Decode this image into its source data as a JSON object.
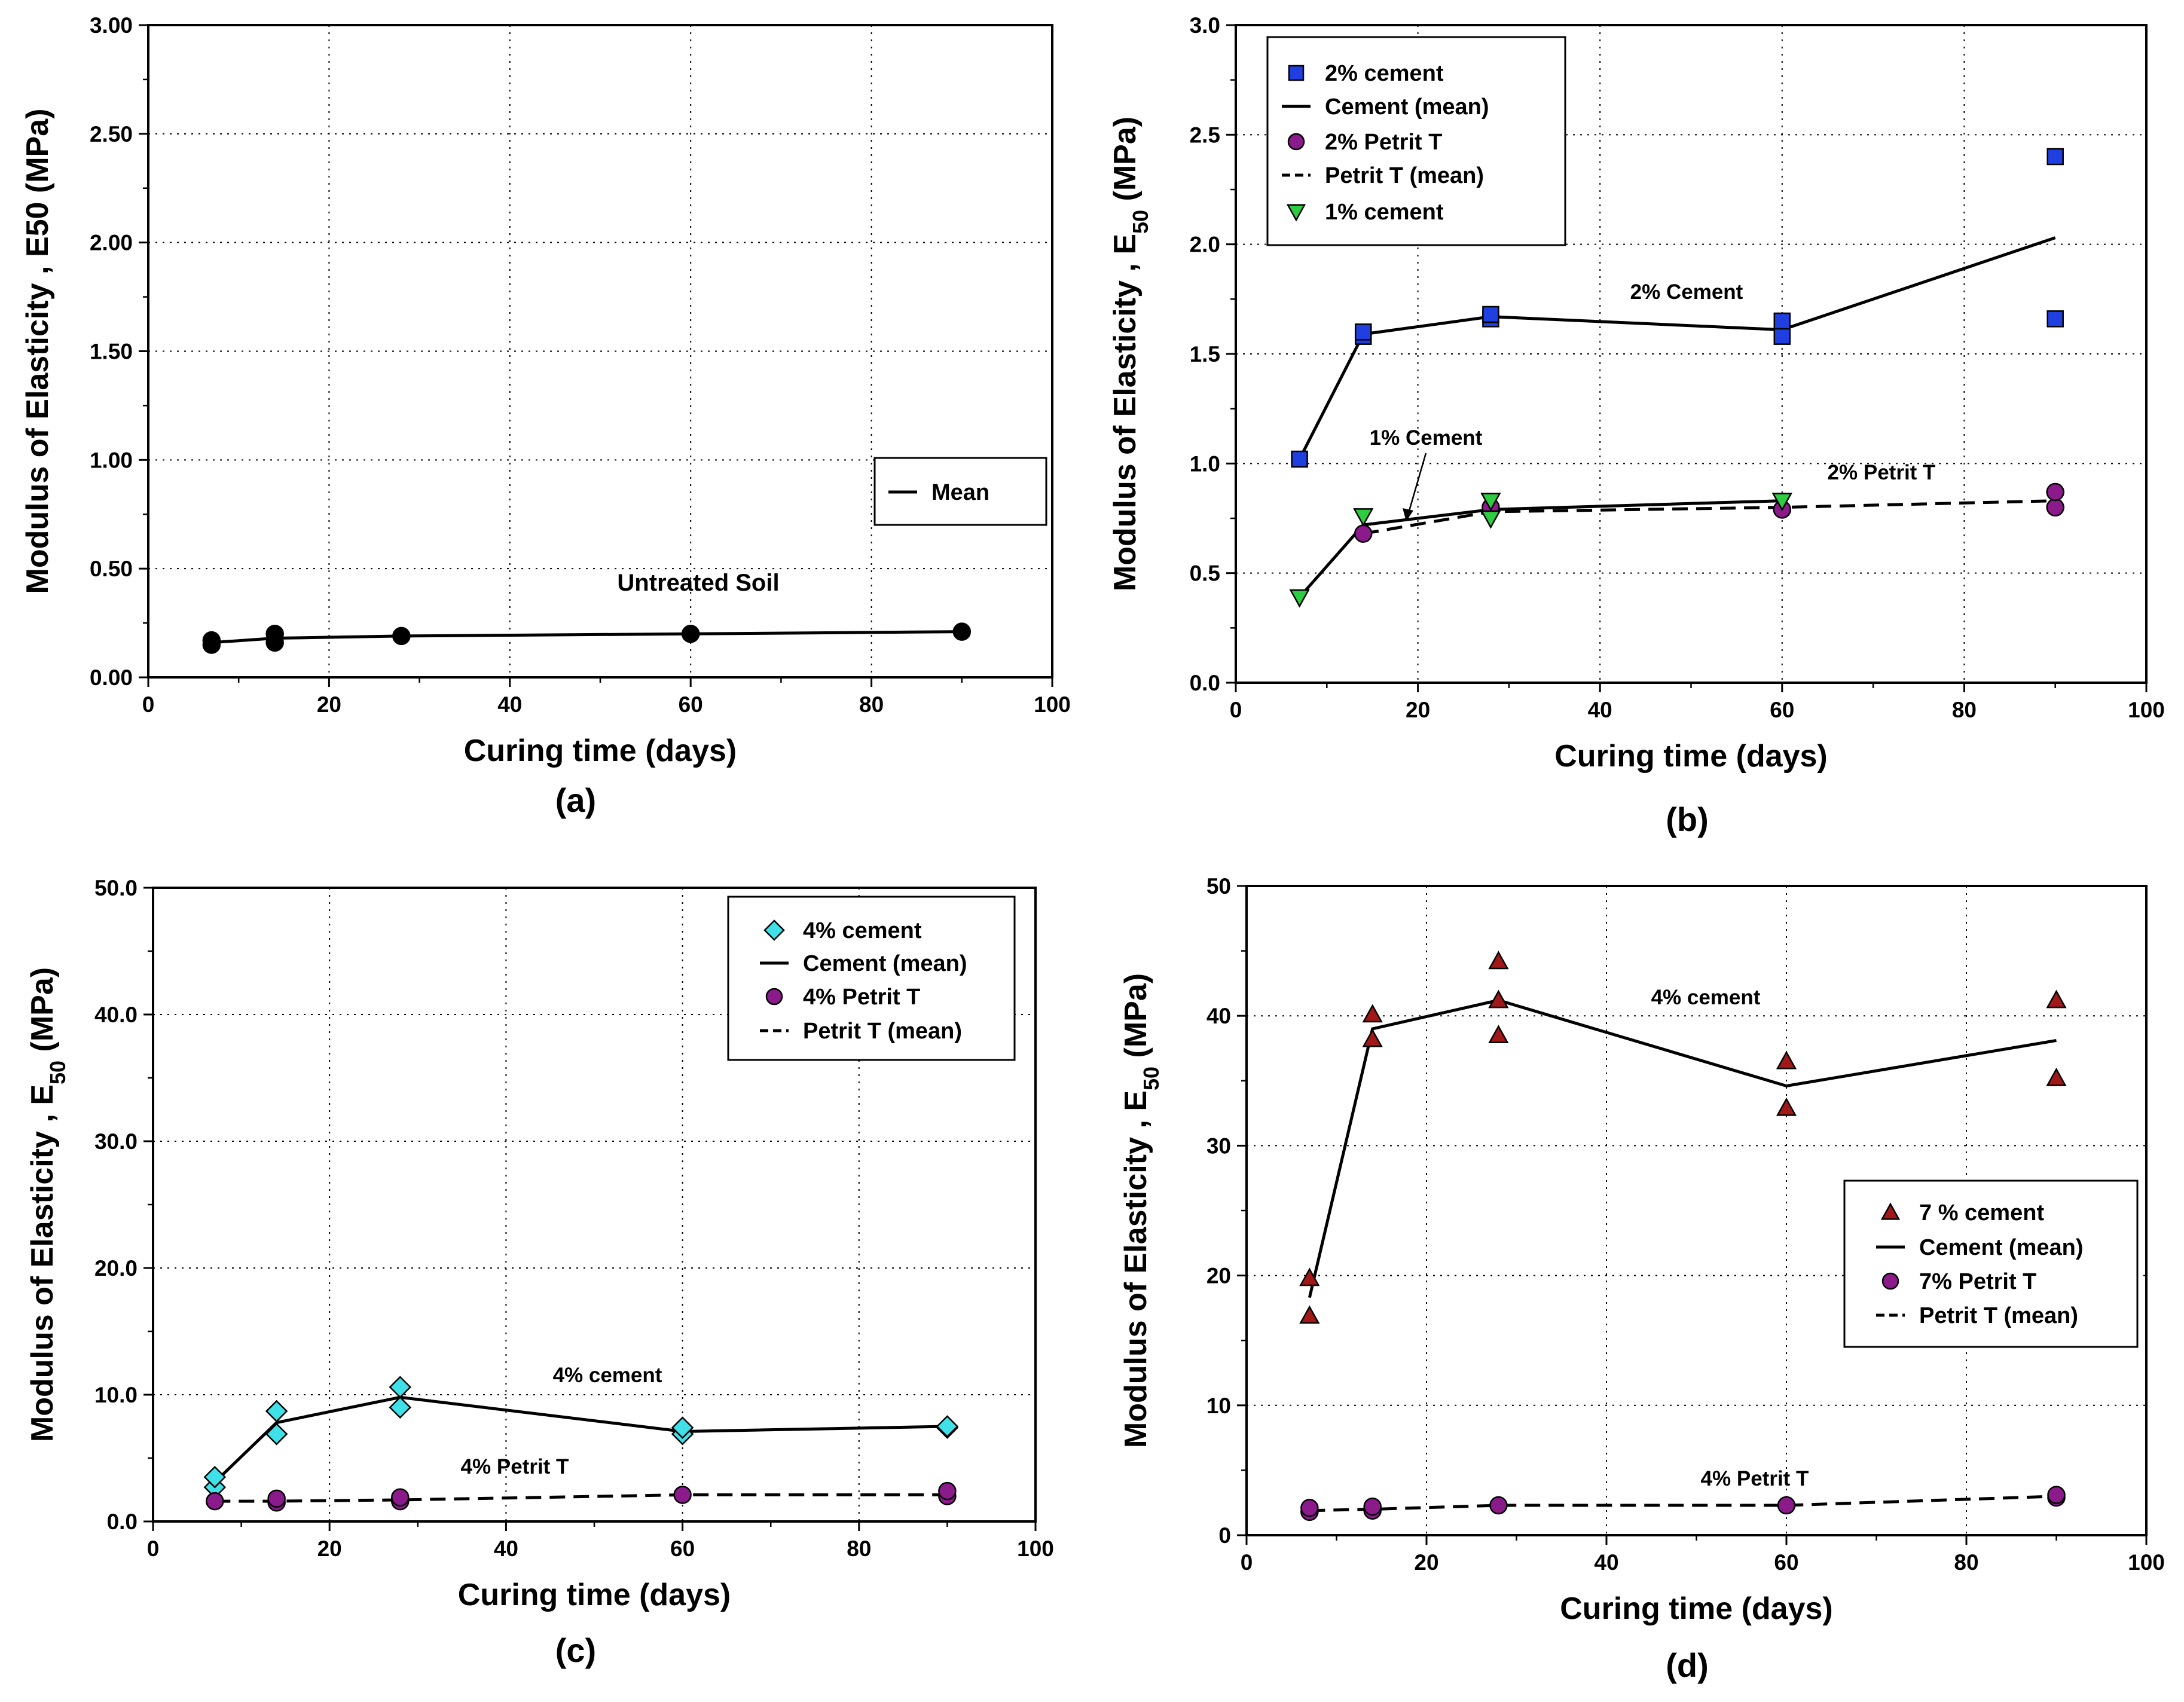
{
  "chart_data": [
    {
      "id": "a",
      "type": "scatter",
      "panel_label": "(a)",
      "xlabel": "Curing time (days)",
      "ylabel": "Modulus of Elasticity , E50 (MPa)",
      "xlim": [
        0,
        100
      ],
      "ylim": [
        0,
        3
      ],
      "x_ticks": [
        0,
        20,
        40,
        60,
        80,
        100
      ],
      "x_tick_labels": [
        "0",
        "20",
        "40",
        "60",
        "80",
        "100"
      ],
      "y_ticks": [
        0,
        0.5,
        1,
        1.5,
        2,
        2.5,
        3
      ],
      "y_tick_labels": [
        "0.00",
        "0.50",
        "1.00",
        "1.50",
        "2.00",
        "2.50",
        "3.00"
      ],
      "grid": true,
      "legend_position": "right",
      "series": [
        {
          "kind": "points",
          "marker": "circle",
          "color": "#000000",
          "x": [
            7,
            7,
            14,
            14,
            28,
            60,
            90
          ],
          "y": [
            0.15,
            0.17,
            0.16,
            0.2,
            0.19,
            0.2,
            0.21
          ]
        },
        {
          "name": "Mean",
          "kind": "line",
          "dash": "solid",
          "color": "#000000",
          "x": [
            7,
            14,
            28,
            60,
            90
          ],
          "y": [
            0.16,
            0.18,
            0.19,
            0.2,
            0.21
          ]
        }
      ],
      "annotations": [
        {
          "text": "Untreated Soil",
          "x": 60,
          "y": 0.4,
          "style": "serif"
        }
      ]
    },
    {
      "id": "b",
      "type": "scatter",
      "panel_label": "(b)",
      "xlabel": "Curing time (days)",
      "ylabel": "Modulus of Elasticity , E",
      "ylabel_sub": "50",
      "ylabel_suffix": " (MPa)",
      "xlim": [
        0,
        100
      ],
      "ylim": [
        0,
        3
      ],
      "x_ticks": [
        0,
        20,
        40,
        60,
        80,
        100
      ],
      "x_tick_labels": [
        "0",
        "20",
        "40",
        "60",
        "80",
        "100"
      ],
      "y_ticks": [
        0,
        0.5,
        1,
        1.5,
        2,
        2.5,
        3
      ],
      "y_tick_labels": [
        "0.0",
        "0.5",
        "1.0",
        "1.5",
        "2.0",
        "2.5",
        "3.0"
      ],
      "grid": true,
      "legend_position": "top-left",
      "series": [
        {
          "name": "2% cement",
          "kind": "points",
          "marker": "square",
          "color": "#1f3fe0",
          "x": [
            7,
            14,
            14,
            28,
            28,
            60,
            60,
            90,
            90
          ],
          "y": [
            1.02,
            1.58,
            1.6,
            1.66,
            1.68,
            1.58,
            1.65,
            2.4,
            1.66
          ]
        },
        {
          "name": "Cement (mean)",
          "kind": "line",
          "dash": "solid",
          "color": "#000000",
          "x": [
            7,
            14,
            28,
            60,
            90
          ],
          "y": [
            1.02,
            1.59,
            1.67,
            1.61,
            2.03
          ]
        },
        {
          "name": "2% Petrit T",
          "kind": "points",
          "marker": "circle",
          "color": "#8b1a8b",
          "x": [
            14,
            28,
            60,
            90,
            90
          ],
          "y": [
            0.68,
            0.8,
            0.79,
            0.8,
            0.87
          ]
        },
        {
          "name": "Petrit T (mean)",
          "kind": "line",
          "dash": "dashed",
          "color": "#000000",
          "x": [
            14,
            28,
            60,
            90
          ],
          "y": [
            0.68,
            0.78,
            0.8,
            0.83
          ]
        },
        {
          "name": "1% cement",
          "kind": "points",
          "marker": "triangle-down",
          "color": "#2ecc40",
          "x": [
            7,
            14,
            28,
            28,
            60
          ],
          "y": [
            0.39,
            0.76,
            0.75,
            0.83,
            0.83
          ]
        },
        {
          "kind": "line",
          "dash": "solid",
          "color": "#000000",
          "x": [
            7,
            14,
            28,
            60
          ],
          "y": [
            0.39,
            0.72,
            0.79,
            0.83
          ]
        }
      ],
      "annotations": [
        {
          "text": "2% Cement",
          "x": 46,
          "y": 1.7
        },
        {
          "text": "1% Cement",
          "x": 21,
          "y": 1.06
        },
        {
          "text": "2% Petrit T",
          "x": 71.5,
          "y": 0.88
        }
      ]
    },
    {
      "id": "c",
      "type": "scatter",
      "panel_label": "(c)",
      "xlabel": "Curing time (days)",
      "ylabel": "Modulus of Elasticity , E",
      "ylabel_sub": "50",
      "ylabel_suffix": " (MPa)",
      "xlim": [
        0,
        100
      ],
      "ylim": [
        0,
        50
      ],
      "x_ticks": [
        0,
        20,
        40,
        60,
        80,
        100
      ],
      "x_tick_labels": [
        "0",
        "20",
        "40",
        "60",
        "80",
        "100"
      ],
      "y_ticks": [
        0,
        10,
        20,
        30,
        40,
        50
      ],
      "y_tick_labels": [
        "0.0",
        "10.0",
        "20.0",
        "30.0",
        "40.0",
        "50.0"
      ],
      "grid": true,
      "legend_position": "top-right",
      "series": [
        {
          "name": "4% cement",
          "kind": "points",
          "marker": "diamond",
          "color": "#40e0e8",
          "x": [
            7,
            7,
            14,
            14,
            28,
            28,
            60,
            60,
            90,
            90
          ],
          "y": [
            2.7,
            3.5,
            6.9,
            8.7,
            9.0,
            10.6,
            6.9,
            7.4,
            7.4,
            7.5
          ]
        },
        {
          "name": "Cement (mean)",
          "kind": "line",
          "dash": "solid",
          "color": "#000000",
          "x": [
            7,
            14,
            28,
            60,
            90
          ],
          "y": [
            3.1,
            7.8,
            9.8,
            7.1,
            7.5
          ]
        },
        {
          "name": "4% Petrit T",
          "kind": "points",
          "marker": "circle",
          "color": "#8b1a8b",
          "x": [
            7,
            14,
            14,
            28,
            28,
            60,
            90,
            90
          ],
          "y": [
            1.6,
            1.5,
            1.8,
            1.6,
            1.9,
            2.1,
            2.0,
            2.4
          ]
        },
        {
          "name": "Petrit T (mean)",
          "kind": "line",
          "dash": "dashed",
          "color": "#000000",
          "x": [
            7,
            14,
            28,
            60,
            90
          ],
          "y": [
            1.6,
            1.6,
            1.7,
            2.1,
            2.1
          ]
        }
      ],
      "annotations": [
        {
          "text": "4% cement",
          "x": 51.5,
          "y": 10.9
        },
        {
          "text": "4% Petrit T",
          "x": 41,
          "y": 4.0
        }
      ]
    },
    {
      "id": "d",
      "type": "scatter",
      "panel_label": "(d)",
      "xlabel": "Curing time (days)",
      "ylabel": "Modulus of Elasticity , E",
      "ylabel_sub": "50",
      "ylabel_suffix": " (MPa)",
      "xlim": [
        0,
        100
      ],
      "ylim": [
        0,
        50
      ],
      "x_ticks": [
        0,
        20,
        40,
        60,
        80,
        100
      ],
      "x_tick_labels": [
        "0",
        "20",
        "40",
        "60",
        "80",
        "100"
      ],
      "y_ticks": [
        0,
        10,
        20,
        30,
        40,
        50
      ],
      "y_tick_labels": [
        "0",
        "10",
        "20",
        "30",
        "40",
        "50"
      ],
      "grid": true,
      "legend_position": "right",
      "series": [
        {
          "name": "7 % cement",
          "kind": "points",
          "marker": "triangle-up",
          "color": "#a01818",
          "x": [
            7,
            7,
            14,
            14,
            28,
            28,
            28,
            60,
            60,
            90,
            90
          ],
          "y": [
            16.9,
            19.8,
            38.2,
            40.1,
            38.5,
            41.2,
            44.2,
            32.9,
            36.5,
            35.2,
            41.2
          ]
        },
        {
          "name": "Cement (mean)",
          "kind": "line",
          "dash": "solid",
          "color": "#000000",
          "x": [
            7,
            14,
            28,
            60,
            90
          ],
          "y": [
            18.3,
            39.0,
            41.2,
            34.6,
            38.1
          ]
        },
        {
          "name": "7% Petrit T",
          "kind": "points",
          "marker": "circle",
          "color": "#8b1a8b",
          "x": [
            7,
            7,
            14,
            14,
            28,
            60,
            90,
            90
          ],
          "y": [
            1.8,
            2.1,
            1.9,
            2.2,
            2.3,
            2.3,
            2.9,
            3.1
          ]
        },
        {
          "name": "Petrit T (mean)",
          "kind": "line",
          "dash": "dashed",
          "color": "#000000",
          "x": [
            7,
            14,
            28,
            60,
            90
          ],
          "y": [
            1.9,
            2.0,
            2.3,
            2.3,
            3.0
          ]
        }
      ],
      "annotations": [
        {
          "text": "4% cement",
          "x": 48.5,
          "y": 41.2
        },
        {
          "text": "4% Petrit T",
          "x": 55,
          "y": 3.5
        }
      ]
    }
  ]
}
